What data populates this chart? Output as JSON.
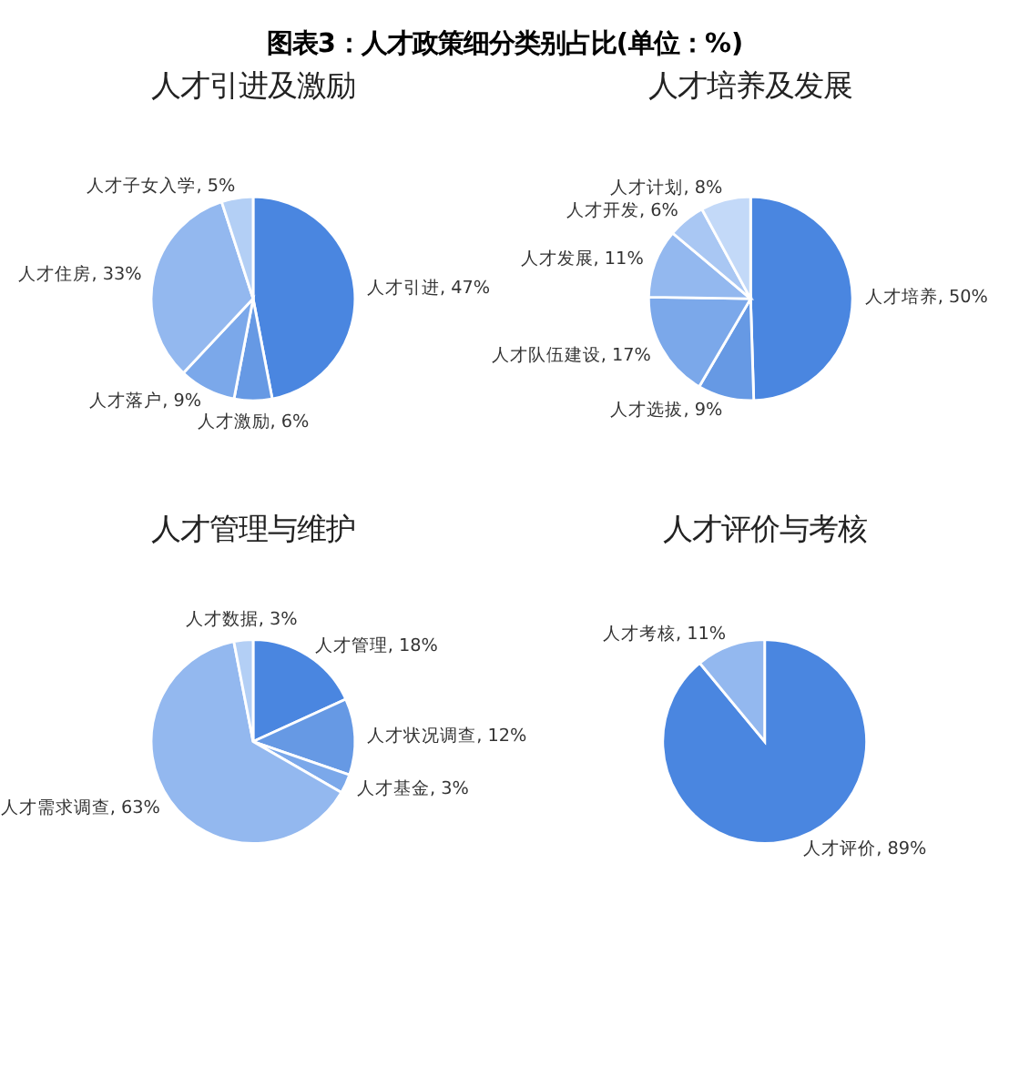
{
  "chart_data": [
    {
      "type": "pie",
      "title": "图表3：人才政策细分类别占比(单位：%)",
      "subtitle": "人才引进及激励",
      "categories": [
        "人才引进",
        "人才激励",
        "人才落户",
        "人才住房",
        "人才子女入学"
      ],
      "values": [
        47,
        6,
        9,
        33,
        5
      ],
      "value_labels": [
        "47%",
        "6%",
        "9%",
        "33%",
        "5%"
      ],
      "colors": [
        "#4a86e0",
        "#6699e4",
        "#7ba8ea",
        "#93b8ef",
        "#b3cff5"
      ]
    },
    {
      "type": "pie",
      "subtitle": "人才培养及发展",
      "categories": [
        "人才培养",
        "人才选拔",
        "人才队伍建设",
        "人才发展",
        "人才开发",
        "人才计划"
      ],
      "values": [
        50,
        9,
        17,
        11,
        6,
        8
      ],
      "value_labels": [
        "50%",
        "9%",
        "17%",
        "11%",
        "6%",
        "8%"
      ],
      "colors": [
        "#4a86e0",
        "#6699e4",
        "#7ba8ea",
        "#93b8ef",
        "#a9c7f3",
        "#c3d9f8"
      ]
    },
    {
      "type": "pie",
      "subtitle": "人才管理与维护",
      "categories": [
        "人才管理",
        "人才状况调查",
        "人才基金",
        "人才需求调查",
        "人才数据"
      ],
      "values": [
        18,
        12,
        3,
        63,
        3
      ],
      "value_labels": [
        "18%",
        "12%",
        "3%",
        "63%",
        "3%"
      ],
      "colors": [
        "#4a86e0",
        "#6699e4",
        "#7ba8ea",
        "#93b8ef",
        "#b3cff5"
      ]
    },
    {
      "type": "pie",
      "subtitle": "人才评价与考核",
      "categories": [
        "人才评价",
        "人才考核"
      ],
      "values": [
        89,
        11
      ],
      "value_labels": [
        "89%",
        "11%"
      ],
      "colors": [
        "#4a86e0",
        "#93b8ef"
      ]
    }
  ]
}
